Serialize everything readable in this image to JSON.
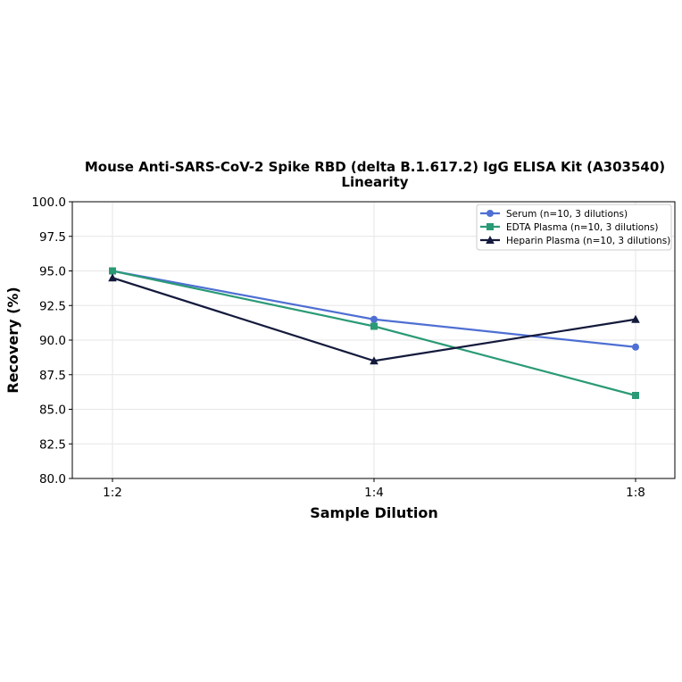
{
  "chart_data": {
    "type": "line",
    "title_line1": "Mouse Anti-SARS-CoV-2 Spike RBD (delta B.1.617.2) IgG ELISA Kit (A303540)",
    "title_line2": "Linearity",
    "xlabel": "Sample Dilution",
    "ylabel": "Recovery (%)",
    "categories": [
      "1:2",
      "1:4",
      "1:8"
    ],
    "ylim": [
      80.0,
      100.0
    ],
    "yticks": [
      "80.0",
      "82.5",
      "85.0",
      "87.5",
      "90.0",
      "92.5",
      "95.0",
      "97.5",
      "100.0"
    ],
    "grid": true,
    "legend_position": "top-right",
    "series": [
      {
        "name": "Serum (n=10, 3 dilutions)",
        "values": [
          95.0,
          91.5,
          89.5
        ],
        "color": "#4e6fd3",
        "marker": "circle"
      },
      {
        "name": "EDTA Plasma (n=10, 3 dilutions)",
        "values": [
          95.0,
          91.0,
          86.0
        ],
        "color": "#2a9a76",
        "marker": "square"
      },
      {
        "name": "Heparin Plasma (n=10, 3 dilutions)",
        "values": [
          94.5,
          88.5,
          91.5
        ],
        "color": "#141a3c",
        "marker": "triangle"
      }
    ]
  }
}
